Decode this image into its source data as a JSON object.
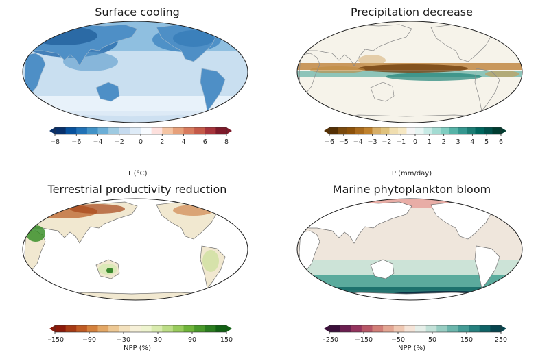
{
  "panels": [
    {
      "title": "Surface cooling",
      "colorbar": {
        "label": "T (°C)",
        "ticks": [
          "−8",
          "−6",
          "−4",
          "−2",
          "0",
          "2",
          "4",
          "6",
          "8"
        ],
        "colors": [
          "#08306b",
          "#08519c",
          "#2171b5",
          "#4292c6",
          "#6baed6",
          "#9ecae1",
          "#c6dbef",
          "#deebf7",
          "#f7fbff",
          "#fde0dd",
          "#f4c4a3",
          "#e6a07a",
          "#d77b5e",
          "#c45a49",
          "#a6343b",
          "#7d1a2a"
        ]
      },
      "map_style": "cooling"
    },
    {
      "title": "Precipitation decrease",
      "colorbar": {
        "label": "P (mm/day)",
        "ticks": [
          "−6",
          "−5",
          "−4",
          "−3",
          "−2",
          "−1",
          "0",
          "1",
          "2",
          "3",
          "4",
          "5",
          "6"
        ],
        "colors": [
          "#543005",
          "#7a4a0e",
          "#8c510a",
          "#a86a1d",
          "#bf812d",
          "#d7ae67",
          "#dfc27d",
          "#f0deb0",
          "#f6e8c3",
          "#f5f5f5",
          "#e8f5f3",
          "#c7eae5",
          "#a3dbd2",
          "#80cdc1",
          "#56b3a7",
          "#35978f",
          "#1c7d74",
          "#01665e",
          "#01504a",
          "#003c30"
        ]
      },
      "map_style": "precip"
    },
    {
      "title": "Terrestrial productivity reduction",
      "colorbar": {
        "label": "NPP (%)",
        "ticks": [
          "−150",
          "−90",
          "−30",
          "30",
          "90",
          "150"
        ],
        "colors": [
          "#8c1a0a",
          "#a63a14",
          "#bf5b24",
          "#d4813d",
          "#e3a765",
          "#edc894",
          "#f3e1bd",
          "#f6f0d8",
          "#eef4cf",
          "#d9ebae",
          "#bcdd86",
          "#98cb5c",
          "#6fb43a",
          "#49992a",
          "#2a7d1f",
          "#126114"
        ]
      },
      "map_style": "land"
    },
    {
      "title": "Marine phytoplankton bloom",
      "colorbar": {
        "label": "NPP (%)",
        "ticks": [
          "−250",
          "−150",
          "−50",
          "50",
          "150",
          "250"
        ],
        "colors": [
          "#3b0f3a",
          "#6b1f50",
          "#94345e",
          "#b75767",
          "#d27f78",
          "#e3a693",
          "#efc8b3",
          "#f5e4d8",
          "#e6efe9",
          "#c3e1d8",
          "#98cdc2",
          "#6cb6ac",
          "#459c96",
          "#25807e",
          "#0f6366",
          "#07454e"
        ]
      },
      "map_style": "ocean"
    }
  ]
}
